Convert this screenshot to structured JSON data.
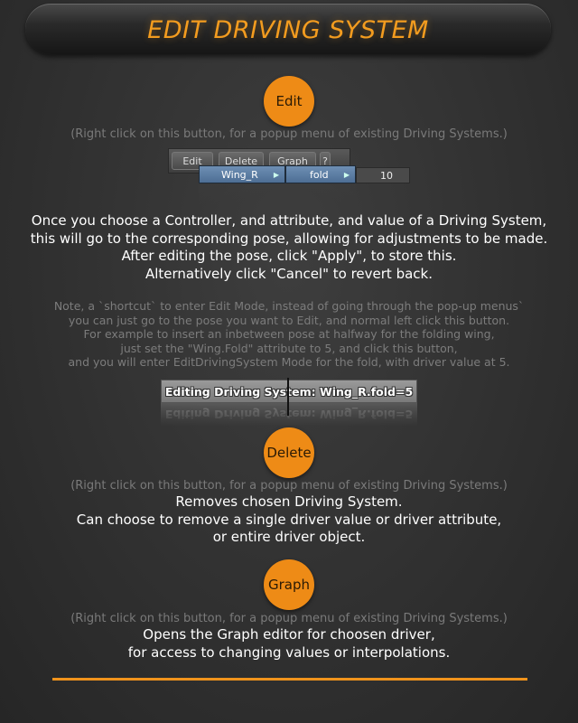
{
  "header": {
    "title": "EDIT DRIVING SYSTEM"
  },
  "edit": {
    "button_label": "Edit",
    "hint": "(Right click on this button, for a popup menu of existing Driving Systems.)",
    "screenshot": {
      "toolbar": [
        "Edit",
        "Delete",
        "Graph",
        "?"
      ],
      "menu_level1": "Wing_R",
      "menu_level2": "fold",
      "menu_level3": "10"
    },
    "description": [
      "Once you choose a Controller, and attribute, and value of a Driving System,",
      "this will go to the corresponding pose, allowing for adjustments to be made.",
      "After editing the pose, click \"Apply\", to store this.",
      "Alternatively click \"Cancel\" to revert back."
    ],
    "note": [
      "Note, a `shortcut` to enter Edit Mode, instead of going through the pop-up menus`",
      "you can just go to the pose you want to Edit, and normal left click this button.",
      "For example to insert an inbetween pose at halfway for the folding wing,",
      "just set the \"Wing.Fold\" attribute to 5, and click this button,",
      "and you will enter EditDrivingSystem Mode for the fold, with driver value at 5."
    ],
    "banner": "Editing Driving System:  Wing_R.fold=5"
  },
  "delete": {
    "button_label": "Delete",
    "hint": "(Right click on this button, for a popup menu of existing Driving Systems.)",
    "description": [
      "Removes chosen Driving System.",
      "Can choose to remove a single driver value or driver attribute,",
      "or entire driver object."
    ]
  },
  "graph": {
    "button_label": "Graph",
    "hint": "(Right click on this button, for a popup menu of existing Driving Systems.)",
    "description": [
      "Opens the Graph editor for choosen driver,",
      "for access to changing values or interpolations."
    ]
  },
  "colors": {
    "accent": "#ee8b16",
    "title": "#f39c1f",
    "background": "#333333"
  }
}
